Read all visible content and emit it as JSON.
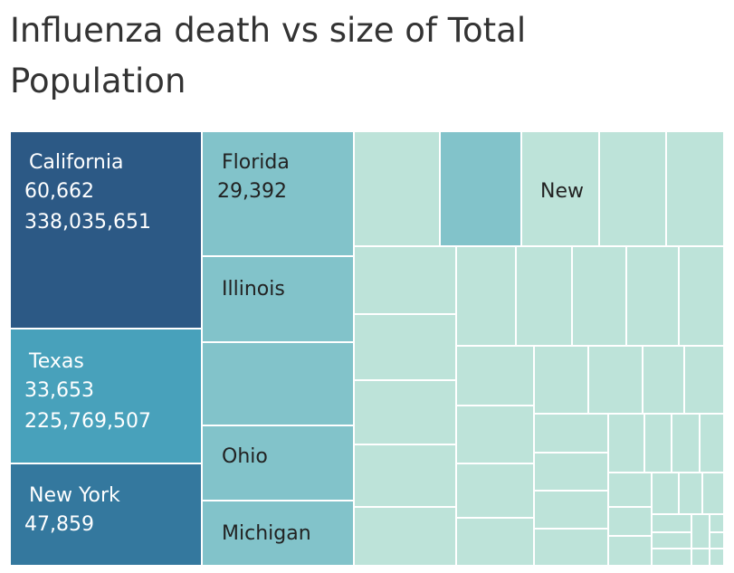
{
  "chart_data": {
    "type": "treemap",
    "title": "Influenza death vs size of Total Population",
    "size_measure": "Total Population",
    "color_measure": "Influenza death",
    "colors": {
      "highest": "#2c5985",
      "high": "#34789e",
      "mid": "#48a1bb",
      "lowmid": "#82c3ca",
      "low": "#bde3d9",
      "border": "#ffffff"
    },
    "labels": [
      {
        "state": "California",
        "deaths": "60,662",
        "population": "338,035,651",
        "color": "#2c5985",
        "text_color": "#ffffff"
      },
      {
        "state": "Texas",
        "deaths": "33,653",
        "population": "225,769,507",
        "color": "#48a1bb",
        "text_color": "#ffffff"
      },
      {
        "state": "New York",
        "deaths": "47,859",
        "population": "",
        "color": "#34789e",
        "text_color": "#ffffff"
      },
      {
        "state": "Florida",
        "deaths": "29,392",
        "population": "",
        "color": "#82c3ca",
        "text_color": "#222222"
      },
      {
        "state": "Illinois",
        "deaths": "",
        "population": "",
        "color": "#82c3ca",
        "text_color": "#222222"
      },
      {
        "state": "Ohio",
        "deaths": "",
        "population": "",
        "color": "#82c3ca",
        "text_color": "#222222"
      },
      {
        "state": "Michigan",
        "deaths": "",
        "population": "",
        "color": "#82c3ca",
        "text_color": "#222222"
      },
      {
        "state": "New",
        "deaths": "",
        "population": "",
        "color": "#bde3d9",
        "text_color": "#222222"
      }
    ]
  }
}
